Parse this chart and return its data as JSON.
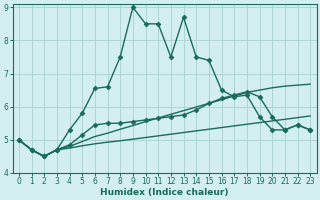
{
  "bg_color": "#d2eeee",
  "grid_color": "#aed4d4",
  "line_color": "#1a6b5a",
  "xlabel": "Humidex (Indice chaleur)",
  "xlim": [
    -0.5,
    23.5
  ],
  "ylim": [
    4,
    9.1
  ],
  "yticks": [
    4,
    5,
    6,
    7,
    8,
    9
  ],
  "xticks": [
    0,
    1,
    2,
    3,
    4,
    5,
    6,
    7,
    8,
    9,
    10,
    11,
    12,
    13,
    14,
    15,
    16,
    17,
    18,
    19,
    20,
    21,
    22,
    23
  ],
  "series": [
    {
      "x": [
        0,
        1,
        2,
        3,
        4,
        5,
        6,
        7,
        8,
        9,
        10,
        11,
        12,
        13,
        14,
        15,
        16,
        17,
        18,
        19,
        20,
        21,
        22,
        23
      ],
      "y": [
        5.0,
        4.7,
        4.5,
        4.7,
        4.75,
        4.82,
        4.88,
        4.93,
        4.97,
        5.02,
        5.07,
        5.12,
        5.17,
        5.22,
        5.27,
        5.32,
        5.37,
        5.42,
        5.47,
        5.52,
        5.57,
        5.62,
        5.67,
        5.72
      ],
      "marker": null,
      "linewidth": 1.0
    },
    {
      "x": [
        0,
        1,
        2,
        3,
        4,
        5,
        6,
        7,
        8,
        9,
        10,
        11,
        12,
        13,
        14,
        15,
        16,
        17,
        18,
        19,
        20,
        21,
        22,
        23
      ],
      "y": [
        5.0,
        4.7,
        4.5,
        4.7,
        4.8,
        4.95,
        5.1,
        5.2,
        5.32,
        5.43,
        5.55,
        5.66,
        5.77,
        5.88,
        5.99,
        6.1,
        6.21,
        6.32,
        6.43,
        6.5,
        6.57,
        6.62,
        6.65,
        6.68
      ],
      "marker": null,
      "linewidth": 1.0
    },
    {
      "x": [
        0,
        1,
        2,
        3,
        4,
        5,
        6,
        7,
        8,
        9,
        10,
        11,
        12,
        13,
        14,
        15,
        16,
        17,
        18,
        19,
        20,
        21,
        22,
        23
      ],
      "y": [
        5.0,
        4.7,
        4.5,
        4.7,
        4.85,
        5.15,
        5.45,
        5.5,
        5.5,
        5.55,
        5.6,
        5.65,
        5.7,
        5.75,
        5.9,
        6.1,
        6.25,
        6.35,
        6.45,
        6.3,
        5.7,
        5.3,
        5.45,
        5.3
      ],
      "marker": "D",
      "markersize": 2.5,
      "linewidth": 1.0
    },
    {
      "x": [
        0,
        1,
        2,
        3,
        4,
        5,
        6,
        7,
        8,
        9,
        10,
        11,
        12,
        13,
        14,
        15,
        16,
        17,
        18,
        19,
        20,
        21,
        22,
        23
      ],
      "y": [
        5.0,
        4.7,
        4.5,
        4.7,
        5.3,
        5.8,
        6.55,
        6.6,
        7.5,
        9.0,
        8.5,
        8.5,
        7.5,
        8.7,
        7.5,
        7.4,
        6.5,
        6.3,
        6.35,
        5.7,
        5.3,
        5.3,
        5.45,
        5.3
      ],
      "marker": "D",
      "markersize": 2.5,
      "linewidth": 1.0
    }
  ]
}
